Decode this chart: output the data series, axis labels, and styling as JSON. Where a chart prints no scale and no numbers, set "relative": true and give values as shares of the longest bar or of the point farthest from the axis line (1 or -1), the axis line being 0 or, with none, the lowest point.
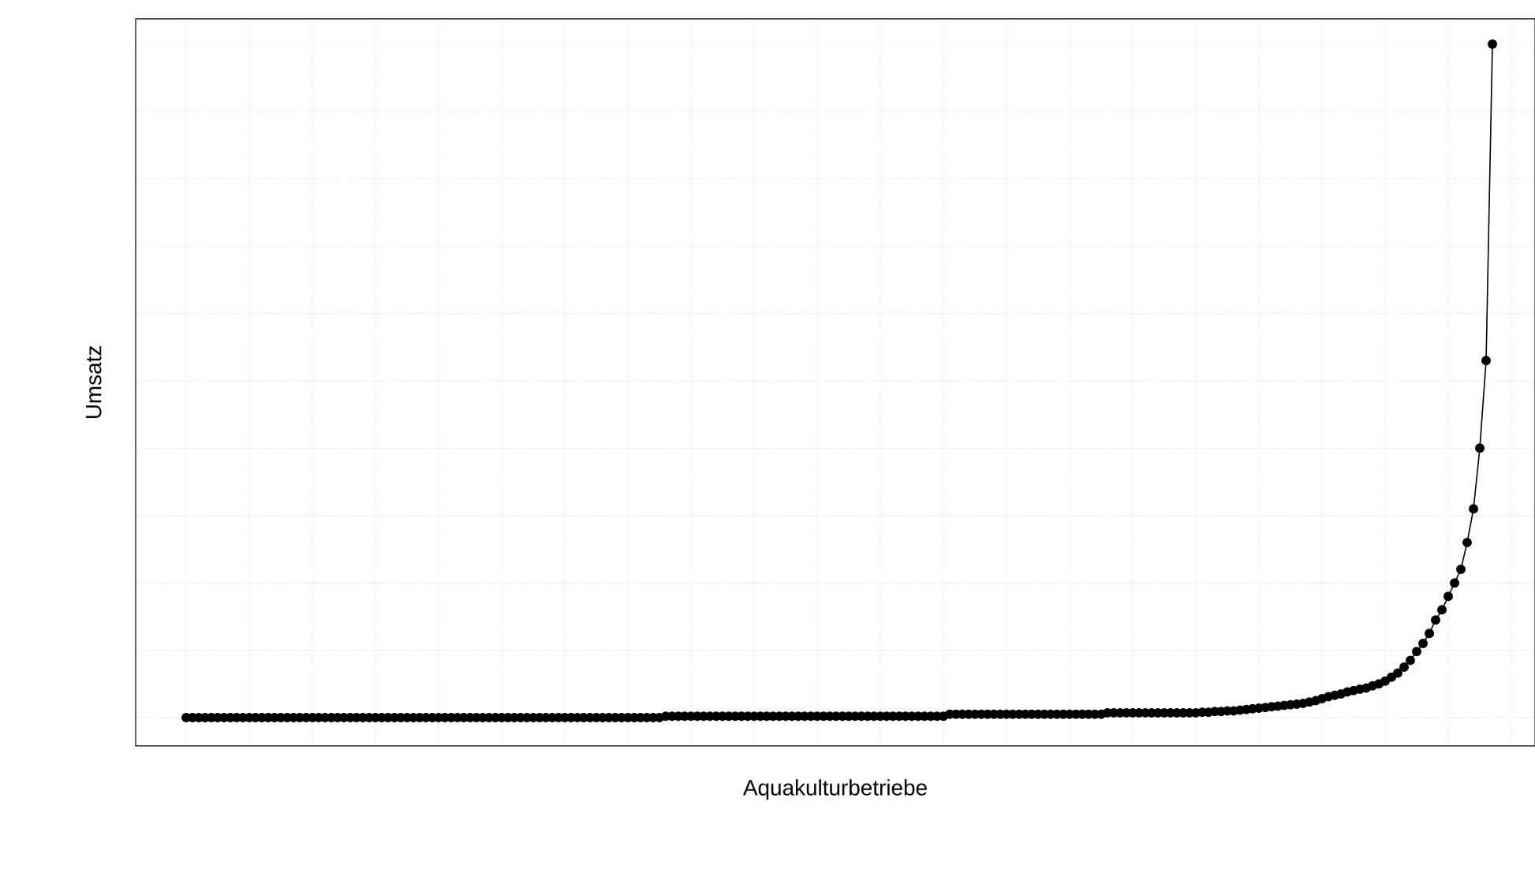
{
  "chart_data": {
    "type": "line",
    "xlabel": "Aquakulturbetriebe",
    "ylabel": "Umsatz",
    "relative": true,
    "grid": true,
    "marker": "circle",
    "color": "#000000",
    "categories": [
      null,
      null,
      null,
      null,
      null,
      null,
      null,
      null,
      null,
      null,
      null,
      null,
      null,
      null,
      null,
      null,
      null,
      null,
      null,
      null,
      null,
      null,
      null,
      null,
      null,
      null,
      null,
      null,
      null,
      null,
      null,
      null,
      null,
      null,
      null,
      null,
      null,
      null,
      null,
      null,
      null,
      null,
      null,
      null,
      null,
      null,
      null,
      null,
      null,
      null,
      null,
      null,
      null,
      null,
      null,
      null,
      null,
      null,
      null,
      null,
      null,
      null,
      null,
      null,
      null,
      null,
      null,
      null,
      null,
      null,
      null,
      null,
      null,
      null,
      null,
      null,
      null,
      null,
      null,
      null,
      null,
      null,
      null,
      null,
      null,
      null,
      null,
      null,
      null,
      null,
      null,
      null,
      null,
      null,
      null,
      null,
      null,
      null,
      null,
      null,
      null,
      null,
      null,
      null,
      null,
      null,
      null,
      null,
      null,
      null,
      null,
      null,
      null,
      null,
      null,
      null,
      null,
      null,
      null,
      null,
      null,
      null,
      null,
      null,
      null,
      null,
      null,
      null,
      null,
      null,
      null,
      null,
      null,
      null,
      null,
      null,
      null,
      null,
      null,
      null,
      null,
      null,
      null,
      null,
      null,
      null,
      null,
      null,
      null,
      null,
      null,
      null,
      null,
      null,
      null,
      null,
      null,
      null,
      null,
      null,
      null,
      null,
      null,
      null,
      null,
      null,
      null,
      null,
      null,
      null,
      null,
      null,
      null,
      null,
      null,
      null,
      null,
      null,
      null,
      null,
      null,
      null,
      null,
      null,
      null,
      null,
      null,
      null,
      null,
      null,
      null,
      null,
      null,
      null,
      null,
      null,
      null,
      null,
      null,
      null,
      null,
      null,
      null,
      null,
      null,
      null,
      null,
      null
    ],
    "values": [
      0,
      0,
      0,
      0,
      0,
      0,
      0,
      0,
      0,
      0,
      0,
      0,
      0,
      0,
      0,
      0,
      0,
      0,
      0,
      0,
      0,
      0,
      0,
      0,
      0,
      0,
      0,
      0,
      0,
      0,
      0,
      0,
      0,
      0,
      0,
      0,
      0,
      0,
      0,
      0,
      0,
      0,
      0,
      0,
      0,
      0,
      0,
      0,
      0,
      0,
      0,
      0,
      0,
      0,
      0,
      0,
      0,
      0,
      0,
      0,
      0,
      0,
      0,
      0,
      0,
      0,
      0,
      0,
      0,
      0,
      0,
      0,
      0,
      0,
      0,
      0,
      0.002,
      0.002,
      0.002,
      0.002,
      0.002,
      0.002,
      0.002,
      0.002,
      0.002,
      0.002,
      0.002,
      0.002,
      0.002,
      0.002,
      0.002,
      0.002,
      0.002,
      0.002,
      0.002,
      0.002,
      0.002,
      0.002,
      0.002,
      0.002,
      0.002,
      0.002,
      0.002,
      0.002,
      0.002,
      0.002,
      0.002,
      0.002,
      0.002,
      0.002,
      0.002,
      0.002,
      0.002,
      0.002,
      0.002,
      0.002,
      0.002,
      0.002,
      0.002,
      0.002,
      0.002,
      0.005,
      0.005,
      0.005,
      0.005,
      0.005,
      0.005,
      0.005,
      0.005,
      0.005,
      0.005,
      0.005,
      0.005,
      0.005,
      0.005,
      0.005,
      0.005,
      0.005,
      0.005,
      0.005,
      0.005,
      0.005,
      0.005,
      0.005,
      0.005,
      0.005,
      0.007,
      0.007,
      0.007,
      0.007,
      0.007,
      0.007,
      0.007,
      0.007,
      0.007,
      0.007,
      0.007,
      0.007,
      0.007,
      0.007,
      0.007,
      0.008,
      0.008,
      0.009,
      0.009,
      0.01,
      0.01,
      0.011,
      0.012,
      0.013,
      0.014,
      0.015,
      0.016,
      0.017,
      0.018,
      0.019,
      0.02,
      0.021,
      0.023,
      0.025,
      0.028,
      0.031,
      0.033,
      0.035,
      0.038,
      0.04,
      0.042,
      0.044,
      0.047,
      0.05,
      0.054,
      0.06,
      0.066,
      0.075,
      0.085,
      0.098,
      0.11,
      0.125,
      0.145,
      0.16,
      0.18,
      0.2,
      0.22,
      0.26,
      0.31,
      0.4,
      0.53,
      1
    ]
  }
}
